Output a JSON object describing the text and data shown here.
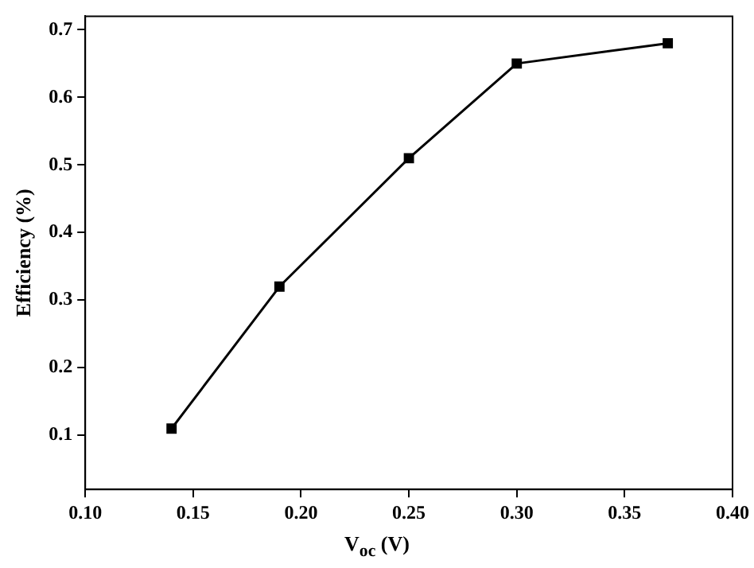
{
  "chart_data": {
    "type": "line",
    "xlabel": "V$_{oc}$ (V)",
    "ylabel": "Efficiency (%)",
    "x": [
      0.14,
      0.19,
      0.25,
      0.3,
      0.37
    ],
    "series": [
      {
        "color": "#000000",
        "values": [
          0.11,
          0.32,
          0.51,
          0.65,
          0.68
        ]
      }
    ],
    "xlim": [
      0.1,
      0.4
    ],
    "xticks": [
      {
        "value": 0.1,
        "label": "0.10"
      },
      {
        "value": 0.15,
        "label": "0.15"
      },
      {
        "value": 0.2,
        "label": "0.20"
      },
      {
        "value": 0.25,
        "label": "0.25"
      },
      {
        "value": 0.3,
        "label": "0.30"
      },
      {
        "value": 0.35,
        "label": "0.35"
      },
      {
        "value": 0.4,
        "label": "0.40"
      }
    ],
    "ylim": [
      0.02,
      0.72
    ],
    "yticks": [
      0.1,
      0.2,
      0.3,
      0.4,
      0.5,
      0.6,
      0.7
    ],
    "grid": false,
    "legend": false,
    "marker": "square",
    "line_style": "solid"
  }
}
